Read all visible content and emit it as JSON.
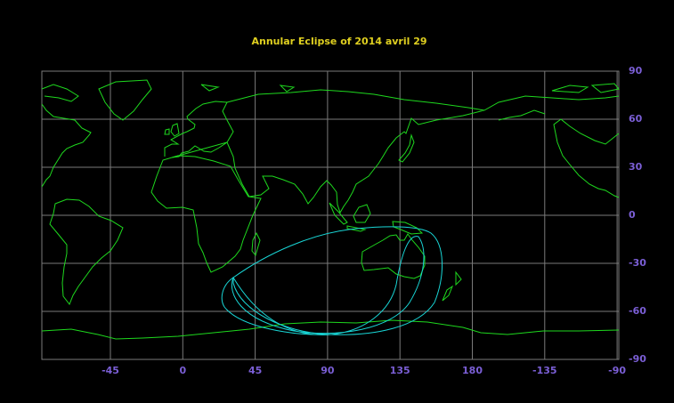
{
  "header": {
    "title": "Annular  Eclipse  of  2014  avril  29"
  },
  "axes": {
    "x_labels": [
      -45,
      0,
      45,
      90,
      135,
      180,
      -135,
      -90
    ],
    "y_labels": [
      90,
      60,
      30,
      0,
      -30,
      -60,
      -90
    ]
  }
}
